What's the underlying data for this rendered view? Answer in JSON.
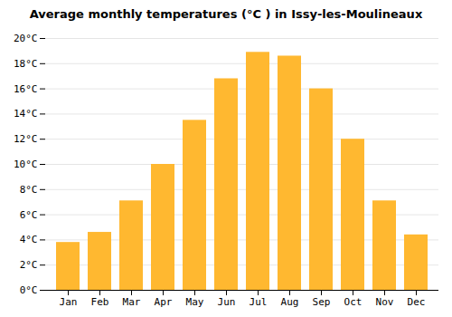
{
  "chart_data": {
    "type": "bar",
    "title": "Average monthly temperatures (°C ) in Issy-les-Moulineaux",
    "categories": [
      "Jan",
      "Feb",
      "Mar",
      "Apr",
      "May",
      "Jun",
      "Jul",
      "Aug",
      "Sep",
      "Oct",
      "Nov",
      "Dec"
    ],
    "values": [
      3.8,
      4.6,
      7.1,
      10.0,
      13.5,
      16.8,
      18.9,
      18.6,
      16.0,
      12.0,
      7.1,
      4.4
    ],
    "color": "#FFB830",
    "ylim": [
      0,
      20
    ],
    "yticks": [
      {
        "value": 0,
        "label": "0°C"
      },
      {
        "value": 2,
        "label": "2°C"
      },
      {
        "value": 4,
        "label": "4°C"
      },
      {
        "value": 6,
        "label": "6°C"
      },
      {
        "value": 8,
        "label": "8°C"
      },
      {
        "value": 10,
        "label": "10°C"
      },
      {
        "value": 12,
        "label": "12°C"
      },
      {
        "value": 14,
        "label": "14°C"
      },
      {
        "value": 16,
        "label": "16°C"
      },
      {
        "value": 18,
        "label": "18°C"
      },
      {
        "value": 20,
        "label": "20°C"
      }
    ],
    "grid": true
  }
}
